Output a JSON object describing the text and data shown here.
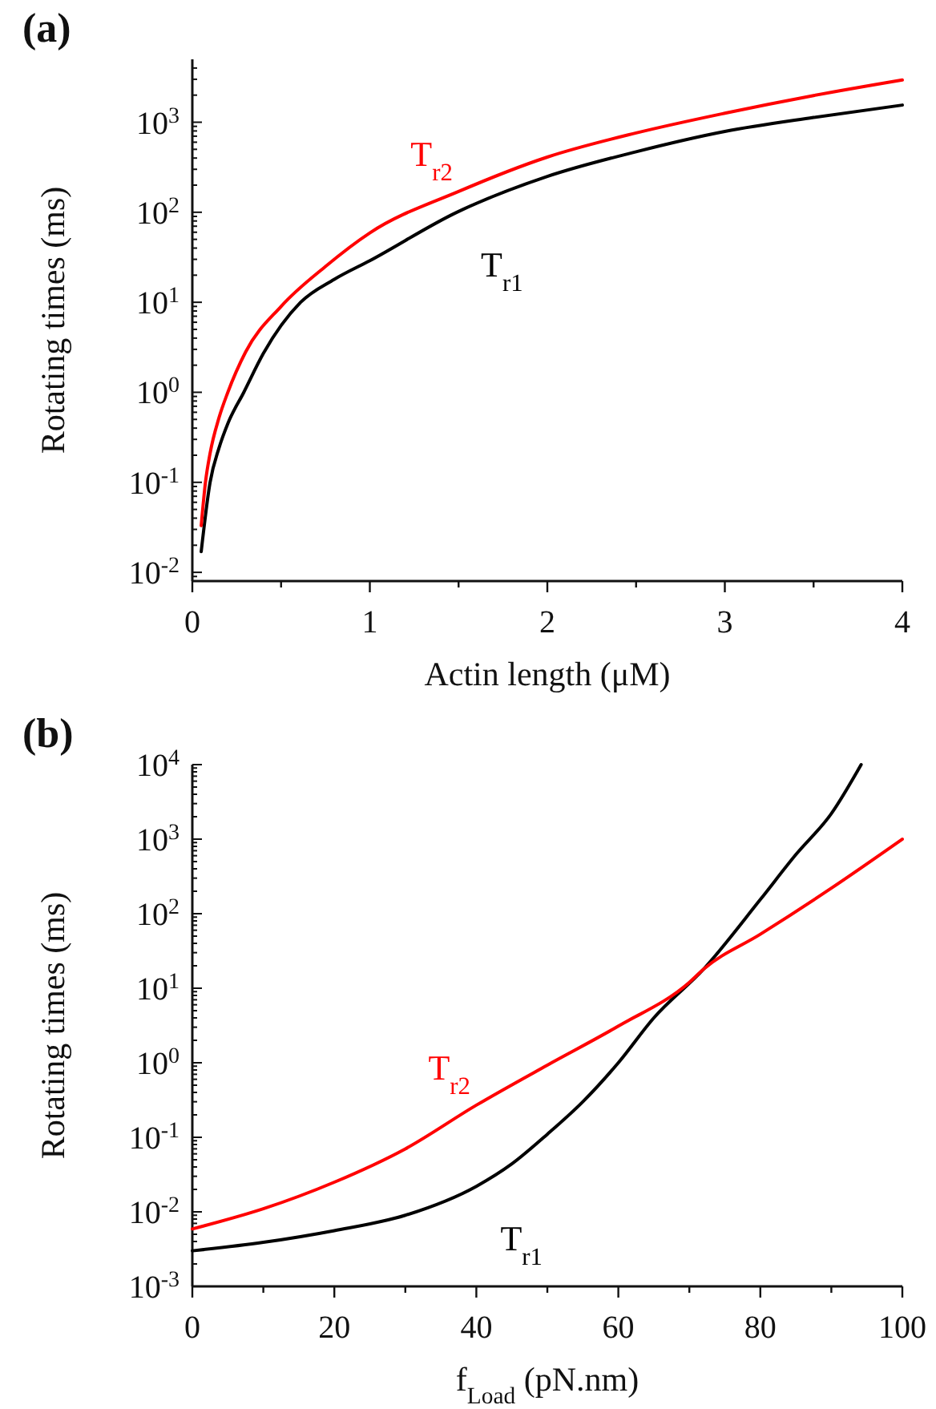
{
  "chart_data": [
    {
      "type": "line",
      "title": "(a)",
      "xlabel": "Actin length (μM)",
      "ylabel": "Rotating times (ms)",
      "log": "y",
      "grid": false,
      "legend": false,
      "marker": "none",
      "line_style": "solid",
      "xlim": [
        0,
        4
      ],
      "xticks": [
        0,
        {
          "value": 0.5,
          "label": null
        },
        1,
        {
          "value": 1.5,
          "label": null
        },
        2,
        {
          "value": 2.5,
          "label": null
        },
        3,
        {
          "value": 3.5,
          "label": null
        },
        4
      ],
      "ylim": [
        0.008,
        5000
      ],
      "yticks": [
        {
          "value": 0.009,
          "label": null
        },
        {
          "value": 0.01,
          "label": "10$^{-2}$"
        },
        {
          "value": 0.02,
          "label": null
        },
        {
          "value": 0.03,
          "label": null
        },
        {
          "value": 0.04,
          "label": null
        },
        {
          "value": 0.05,
          "label": null
        },
        {
          "value": 0.06,
          "label": null
        },
        {
          "value": 0.07,
          "label": null
        },
        {
          "value": 0.08,
          "label": null
        },
        {
          "value": 0.09,
          "label": null
        },
        {
          "value": 0.1,
          "label": "10$^{-1}$"
        },
        {
          "value": 0.2,
          "label": null
        },
        {
          "value": 0.3,
          "label": null
        },
        {
          "value": 0.4,
          "label": null
        },
        {
          "value": 0.5,
          "label": null
        },
        {
          "value": 0.6,
          "label": null
        },
        {
          "value": 0.7,
          "label": null
        },
        {
          "value": 0.8,
          "label": null
        },
        {
          "value": 0.9,
          "label": null
        },
        {
          "value": 1,
          "label": "10$^{0}$"
        },
        {
          "value": 2,
          "label": null
        },
        {
          "value": 3,
          "label": null
        },
        {
          "value": 4,
          "label": null
        },
        {
          "value": 5,
          "label": null
        },
        {
          "value": 6,
          "label": null
        },
        {
          "value": 7,
          "label": null
        },
        {
          "value": 8,
          "label": null
        },
        {
          "value": 9,
          "label": null
        },
        {
          "value": 10,
          "label": "10$^{1}$"
        },
        {
          "value": 20,
          "label": null
        },
        {
          "value": 30,
          "label": null
        },
        {
          "value": 40,
          "label": null
        },
        {
          "value": 50,
          "label": null
        },
        {
          "value": 60,
          "label": null
        },
        {
          "value": 70,
          "label": null
        },
        {
          "value": 80,
          "label": null
        },
        {
          "value": 90,
          "label": null
        },
        {
          "value": 100,
          "label": "10$^{2}$"
        },
        {
          "value": 200,
          "label": null
        },
        {
          "value": 300,
          "label": null
        },
        {
          "value": 400,
          "label": null
        },
        {
          "value": 500,
          "label": null
        },
        {
          "value": 600,
          "label": null
        },
        {
          "value": 700,
          "label": null
        },
        {
          "value": 800,
          "label": null
        },
        {
          "value": 900,
          "label": null
        },
        {
          "value": 1000,
          "label": "10$^{3}$"
        },
        {
          "value": 2000,
          "label": null
        },
        {
          "value": 3000,
          "label": null
        },
        {
          "value": 4000,
          "label": null
        }
      ],
      "series": [
        {
          "name": "T$_{r1}$",
          "color": "#000000",
          "x": [
            0.05,
            0.1,
            0.15,
            0.2,
            0.29,
            0.4,
            0.61,
            0.8,
            1,
            1.49,
            2,
            2.5,
            3,
            3.5,
            4
          ],
          "values": [
            0.017,
            0.1,
            0.24,
            0.45,
            1,
            2.7,
            10,
            18,
            29,
            100,
            250,
            470,
            790,
            1130,
            1550
          ]
        },
        {
          "name": "T$_{r2}$",
          "color": "#ff0000",
          "x": [
            0.05,
            0.074,
            0.1,
            0.15,
            0.2,
            0.3,
            0.5,
            0.75,
            1,
            1.5,
            2,
            2.5,
            3,
            3.5,
            4
          ],
          "values": [
            0.033,
            0.1,
            0.21,
            0.52,
            1,
            2.8,
            9,
            25,
            59,
            170,
            410,
            760,
            1260,
            1980,
            2950
          ]
        }
      ]
    },
    {
      "type": "line",
      "title": "(b)",
      "xlabel": "f$_{Load}$ (pN.nm)",
      "ylabel": "Rotating times (ms)",
      "log": "y",
      "grid": false,
      "legend": false,
      "marker": "none",
      "line_style": "solid",
      "xlim": [
        0,
        100
      ],
      "xticks": [
        0,
        {
          "value": 10,
          "label": null
        },
        20,
        {
          "value": 30,
          "label": null
        },
        40,
        {
          "value": 50,
          "label": null
        },
        60,
        {
          "value": 70,
          "label": null
        },
        80,
        {
          "value": 90,
          "label": null
        },
        100
      ],
      "ylim": [
        0.001,
        10000
      ],
      "yticks": [
        {
          "value": 0.001,
          "label": "10$^{-3}$"
        },
        {
          "value": 0.002,
          "label": null
        },
        {
          "value": 0.003,
          "label": null
        },
        {
          "value": 0.004,
          "label": null
        },
        {
          "value": 0.005,
          "label": null
        },
        {
          "value": 0.006,
          "label": null
        },
        {
          "value": 0.007,
          "label": null
        },
        {
          "value": 0.008,
          "label": null
        },
        {
          "value": 0.009,
          "label": null
        },
        {
          "value": 0.01,
          "label": "10$^{-2}$"
        },
        {
          "value": 0.02,
          "label": null
        },
        {
          "value": 0.03,
          "label": null
        },
        {
          "value": 0.04,
          "label": null
        },
        {
          "value": 0.05,
          "label": null
        },
        {
          "value": 0.06,
          "label": null
        },
        {
          "value": 0.07,
          "label": null
        },
        {
          "value": 0.08,
          "label": null
        },
        {
          "value": 0.09,
          "label": null
        },
        {
          "value": 0.1,
          "label": "10$^{-1}$"
        },
        {
          "value": 0.2,
          "label": null
        },
        {
          "value": 0.3,
          "label": null
        },
        {
          "value": 0.4,
          "label": null
        },
        {
          "value": 0.5,
          "label": null
        },
        {
          "value": 0.6,
          "label": null
        },
        {
          "value": 0.7,
          "label": null
        },
        {
          "value": 0.8,
          "label": null
        },
        {
          "value": 0.9,
          "label": null
        },
        {
          "value": 1,
          "label": "10$^{0}$"
        },
        {
          "value": 2,
          "label": null
        },
        {
          "value": 3,
          "label": null
        },
        {
          "value": 4,
          "label": null
        },
        {
          "value": 5,
          "label": null
        },
        {
          "value": 6,
          "label": null
        },
        {
          "value": 7,
          "label": null
        },
        {
          "value": 8,
          "label": null
        },
        {
          "value": 9,
          "label": null
        },
        {
          "value": 10,
          "label": "10$^{1}$"
        },
        {
          "value": 20,
          "label": null
        },
        {
          "value": 30,
          "label": null
        },
        {
          "value": 40,
          "label": null
        },
        {
          "value": 50,
          "label": null
        },
        {
          "value": 60,
          "label": null
        },
        {
          "value": 70,
          "label": null
        },
        {
          "value": 80,
          "label": null
        },
        {
          "value": 90,
          "label": null
        },
        {
          "value": 100,
          "label": "10$^{2}$"
        },
        {
          "value": 200,
          "label": null
        },
        {
          "value": 300,
          "label": null
        },
        {
          "value": 400,
          "label": null
        },
        {
          "value": 500,
          "label": null
        },
        {
          "value": 600,
          "label": null
        },
        {
          "value": 700,
          "label": null
        },
        {
          "value": 800,
          "label": null
        },
        {
          "value": 900,
          "label": null
        },
        {
          "value": 1000,
          "label": "10$^{3}$"
        },
        {
          "value": 2000,
          "label": null
        },
        {
          "value": 3000,
          "label": null
        },
        {
          "value": 4000,
          "label": null
        },
        {
          "value": 5000,
          "label": null
        },
        {
          "value": 6000,
          "label": null
        },
        {
          "value": 7000,
          "label": null
        },
        {
          "value": 8000,
          "label": null
        },
        {
          "value": 9000,
          "label": null
        },
        {
          "value": 10000,
          "label": "10$^{4}$"
        }
      ],
      "series": [
        {
          "name": "T$_{r1}$",
          "color": "#000000",
          "x": [
            0,
            10,
            20,
            30,
            40,
            45,
            50,
            55,
            60,
            65,
            72,
            80,
            85,
            90,
            94.2
          ],
          "values": [
            0.003,
            0.0039,
            0.0056,
            0.009,
            0.022,
            0.044,
            0.11,
            0.3,
            1,
            4,
            18,
            155,
            620,
            2200,
            10000
          ]
        },
        {
          "name": "T$_{r2}$",
          "color": "#ff0000",
          "x": [
            0,
            10,
            20,
            30,
            40,
            50,
            60,
            70,
            72,
            80,
            90,
            100
          ],
          "values": [
            0.0059,
            0.011,
            0.025,
            0.07,
            0.27,
            0.93,
            3.1,
            12,
            18,
            53,
            220,
            1000
          ]
        }
      ]
    }
  ]
}
